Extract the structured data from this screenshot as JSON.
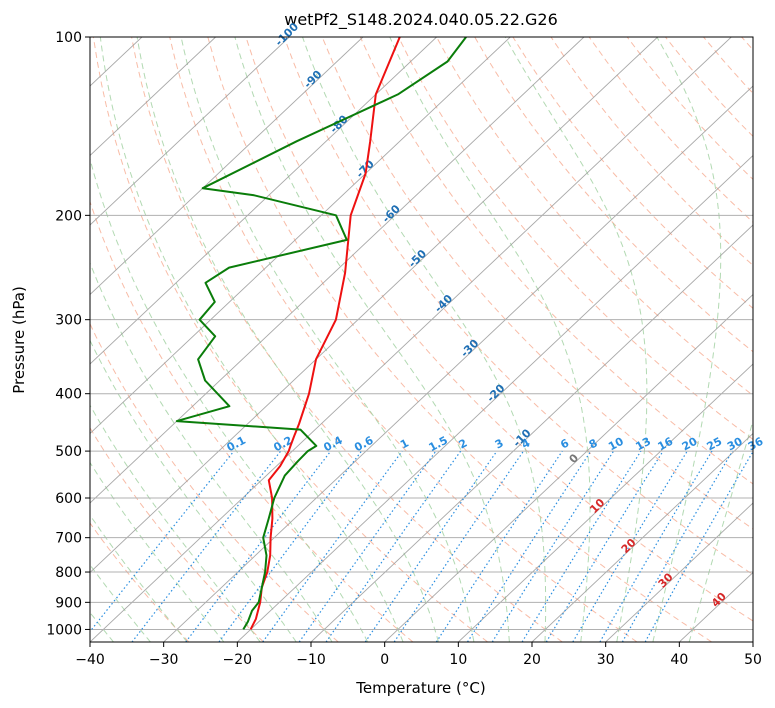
{
  "chart_data": {
    "type": "line",
    "subtype": "skew-t log-p diagram",
    "title": "wetPf2_S148.2024.040.05.22.G26",
    "xlabel": "Temperature (°C)",
    "ylabel": "Pressure (hPa)",
    "xlim": [
      -40,
      50
    ],
    "ylim": [
      1050,
      100
    ],
    "y_scale": "log",
    "grid": true,
    "x_ticks": [
      "−40",
      "−30",
      "−20",
      "−10",
      "0",
      "10",
      "20",
      "30",
      "40",
      "50"
    ],
    "x_tick_values": [
      -40,
      -30,
      -20,
      -10,
      0,
      10,
      20,
      30,
      40,
      50
    ],
    "y_ticks": [
      "100",
      "200",
      "300",
      "400",
      "500",
      "600",
      "700",
      "800",
      "900",
      "1000"
    ],
    "y_tick_values": [
      100,
      200,
      300,
      400,
      500,
      600,
      700,
      800,
      900,
      1000
    ],
    "colors": {
      "temperature": "#ee1111",
      "dewpoint": "#0a7d0a",
      "isotherm": "#9a9a9a",
      "dry_adiabat": "#f5a58a",
      "moist_adiabat": "#9fd09f",
      "mixing_ratio": "#2a8ee0",
      "isotherm_label": "#1f6fb4",
      "isotherm_label_warm": "#d62828",
      "grid": "#b0b0b0"
    },
    "isotherm_labels": [
      {
        "t": -100,
        "text": "-100"
      },
      {
        "t": -90,
        "text": "-90"
      },
      {
        "t": -80,
        "text": "-80"
      },
      {
        "t": -70,
        "text": "-70"
      },
      {
        "t": -60,
        "text": "-60"
      },
      {
        "t": -50,
        "text": "-50"
      },
      {
        "t": -40,
        "text": "-40"
      },
      {
        "t": -30,
        "text": "-30"
      },
      {
        "t": -20,
        "text": "-20"
      },
      {
        "t": -10,
        "text": "-10"
      },
      {
        "t": 0,
        "text": "0"
      },
      {
        "t": 10,
        "text": "10"
      },
      {
        "t": 20,
        "text": "20"
      },
      {
        "t": 30,
        "text": "30"
      },
      {
        "t": 40,
        "text": "40"
      }
    ],
    "mixing_ratio_labels": [
      "0.1",
      "0.2",
      "0.4",
      "0.6",
      "1",
      "1.5",
      "2",
      "3",
      "4",
      "6",
      "8",
      "10",
      "13",
      "16",
      "20",
      "25",
      "30",
      "36"
    ],
    "mixing_ratio_values": [
      0.1,
      0.2,
      0.4,
      0.6,
      1,
      1.5,
      2,
      3,
      4,
      6,
      8,
      10,
      13,
      16,
      20,
      25,
      30,
      36
    ],
    "series": [
      {
        "name": "",
        "role": "temperature",
        "pressure": [
          1000,
          960,
          900,
          850,
          800,
          750,
          700,
          650,
          600,
          560,
          530,
          500,
          490,
          470,
          450,
          400,
          350,
          300,
          250,
          200,
          170,
          150,
          125,
          100
        ],
        "temperature_c": [
          -20,
          -20.8,
          -22.6,
          -24.5,
          -26,
          -28,
          -30.5,
          -33,
          -36,
          -39,
          -39.5,
          -40.5,
          -41,
          -42,
          -43,
          -46,
          -50,
          -53,
          -58.5,
          -66,
          -70,
          -74,
          -80,
          -85
        ]
      },
      {
        "name": "",
        "role": "dewpoint",
        "pressure": [
          1000,
          970,
          930,
          900,
          850,
          800,
          750,
          700,
          650,
          600,
          550,
          520,
          500,
          490,
          460,
          445,
          420,
          380,
          350,
          320,
          300,
          280,
          260,
          245,
          220,
          200,
          185,
          180,
          150,
          125,
          110,
          100
        ],
        "temperature_c": [
          -21,
          -21.5,
          -22.5,
          -22.8,
          -24.5,
          -26.3,
          -28.5,
          -31.5,
          -33.5,
          -35.7,
          -37.5,
          -37.8,
          -37.9,
          -37.5,
          -42,
          -60,
          -55,
          -62,
          -66,
          -67,
          -71.5,
          -72,
          -76,
          -75,
          -63,
          -68,
          -82,
          -90,
          -84,
          -77,
          -75,
          -76
        ]
      }
    ]
  }
}
